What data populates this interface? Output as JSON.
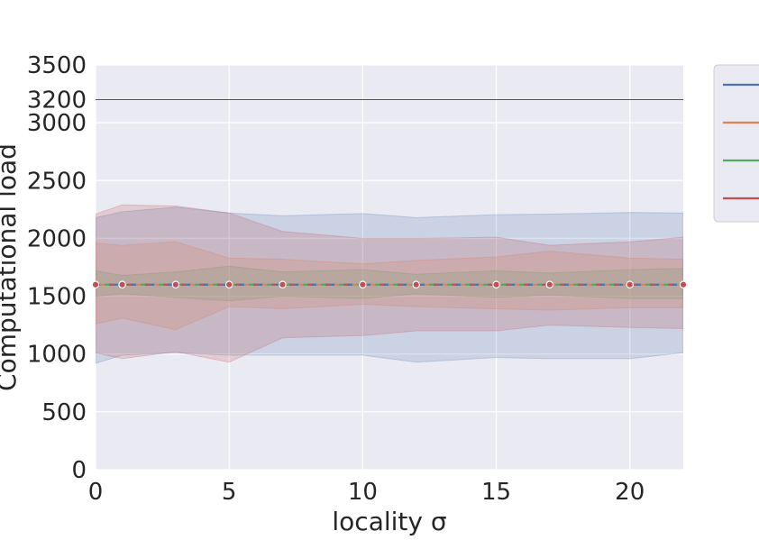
{
  "chart_data": {
    "type": "line",
    "title": "",
    "xlabel": "locality σ",
    "ylabel": "Computational load",
    "xlim": [
      0,
      22
    ],
    "ylim": [
      0,
      3500
    ],
    "x_ticks": [
      0,
      5,
      10,
      15,
      20
    ],
    "x_tick_labels": [
      "0",
      "5",
      "10",
      "15",
      "20"
    ],
    "y_ticks": [
      0,
      500,
      1000,
      1500,
      2000,
      2500,
      3000,
      3200,
      3500
    ],
    "y_tick_labels": [
      "0",
      "500",
      "1000",
      "1500",
      "2000",
      "2500",
      "3000",
      "3200",
      "3500"
    ],
    "grid": true,
    "background": "#eaeaf2",
    "legend_placement": "outside right",
    "reference_line": {
      "y": 3200,
      "color": "#555555"
    },
    "series": [
      {
        "color": "#4c72b0",
        "x": [
          0,
          1,
          3,
          5,
          7,
          10,
          12,
          15,
          17,
          20,
          22
        ],
        "y": [
          1600,
          1600,
          1600,
          1600,
          1600,
          1600,
          1600,
          1600,
          1600,
          1600,
          1600
        ],
        "band_upper": [
          2180,
          2230,
          2270,
          2220,
          2195,
          2215,
          2180,
          2205,
          2210,
          2225,
          2220
        ],
        "band_lower": [
          920,
          990,
          1010,
          990,
          990,
          990,
          930,
          970,
          960,
          960,
          1010
        ]
      },
      {
        "color": "#dd8452",
        "x": [
          0,
          1,
          3,
          5,
          7,
          10,
          12,
          15,
          17,
          20,
          22
        ],
        "y": [
          1600,
          1600,
          1600,
          1600,
          1600,
          1600,
          1600,
          1600,
          1600,
          1600,
          1600
        ],
        "band_upper": [
          1960,
          1940,
          1970,
          1830,
          1820,
          1780,
          1810,
          1840,
          1890,
          1830,
          1820
        ],
        "band_lower": [
          1260,
          1310,
          1210,
          1410,
          1390,
          1430,
          1410,
          1390,
          1380,
          1400,
          1400
        ]
      },
      {
        "color": "#55a868",
        "x": [
          0,
          1,
          3,
          5,
          7,
          10,
          12,
          15,
          17,
          20,
          22
        ],
        "y": [
          1600,
          1600,
          1600,
          1600,
          1600,
          1600,
          1600,
          1600,
          1600,
          1600,
          1600
        ],
        "band_upper": [
          1720,
          1680,
          1710,
          1760,
          1710,
          1730,
          1690,
          1720,
          1700,
          1730,
          1740
        ],
        "band_lower": [
          1500,
          1520,
          1490,
          1460,
          1500,
          1480,
          1520,
          1490,
          1510,
          1480,
          1480
        ]
      },
      {
        "color": "#c44e52",
        "x": [
          0,
          1,
          3,
          5,
          7,
          10,
          12,
          15,
          17,
          20,
          22
        ],
        "y": [
          1600,
          1600,
          1600,
          1600,
          1600,
          1600,
          1600,
          1600,
          1600,
          1600,
          1600
        ],
        "band_upper": [
          2210,
          2290,
          2280,
          2220,
          2060,
          2000,
          2000,
          2010,
          1940,
          1970,
          2010
        ],
        "band_lower": [
          1010,
          960,
          1020,
          930,
          1140,
          1160,
          1200,
          1200,
          1250,
          1230,
          1220
        ]
      }
    ]
  }
}
